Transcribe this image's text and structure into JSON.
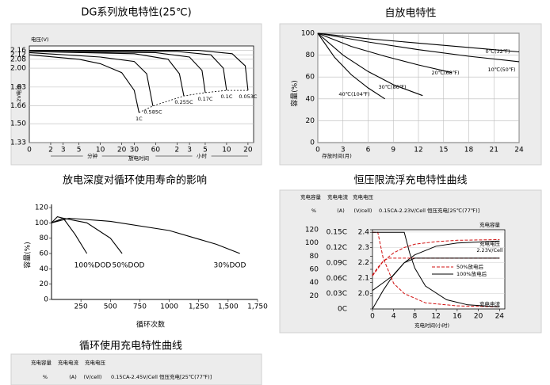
{
  "chart_data": [
    {
      "type": "line",
      "title": "DG系列放电特性(25℃)",
      "ylabel": "电压(V)",
      "side_label": "2V电池",
      "xlabel": "放电时间",
      "x_groups": [
        "分钟",
        "小时"
      ],
      "x_origin": "0",
      "xscale": "log",
      "xlim": [
        1,
        1440
      ],
      "ylim": [
        1.33,
        2.2
      ],
      "xticks": [
        2,
        3,
        5,
        10,
        20,
        30,
        60,
        {
          "value": 120,
          "label": "2"
        },
        {
          "value": 180,
          "label": "3"
        },
        {
          "value": 300,
          "label": "5"
        },
        {
          "value": 600,
          "label": "10"
        },
        {
          "value": 1200,
          "label": "20"
        }
      ],
      "yticks": [
        2.16,
        2.12,
        2.08,
        {
          "value": 2,
          "label": "2.00"
        },
        1.83,
        1.66,
        {
          "value": 1.5,
          "label": "1.50"
        },
        1.33
      ],
      "grid": true,
      "end_line": "dashed",
      "series": [
        {
          "name": "1C",
          "color": "#000000",
          "x": [
            1,
            5,
            10,
            20,
            30,
            35
          ],
          "values": [
            2.12,
            2.08,
            2.04,
            1.96,
            1.8,
            1.6
          ]
        },
        {
          "name": "0.585C",
          "color": "#000000",
          "x": [
            1,
            10,
            30,
            45,
            55
          ],
          "values": [
            2.14,
            2.1,
            2.06,
            1.95,
            1.66
          ]
        },
        {
          "name": "0.255C",
          "color": "#000000",
          "x": [
            1,
            30,
            90,
            130,
            150
          ],
          "values": [
            2.15,
            2.13,
            2.08,
            1.95,
            1.75
          ]
        },
        {
          "name": "0.17C",
          "color": "#000000",
          "x": [
            1,
            60,
            180,
            270,
            300
          ],
          "values": [
            2.15,
            2.14,
            2.1,
            1.98,
            1.78
          ]
        },
        {
          "name": "0.1C",
          "color": "#000000",
          "x": [
            1,
            120,
            360,
            540,
            600
          ],
          "values": [
            2.16,
            2.15,
            2.12,
            2.0,
            1.8
          ]
        },
        {
          "name": "0.053C",
          "color": "#000000",
          "x": [
            1,
            240,
            720,
            1100,
            1200
          ],
          "values": [
            2.16,
            2.16,
            2.13,
            2.02,
            1.8
          ]
        }
      ]
    },
    {
      "type": "line",
      "title": "自放电特性",
      "ylabel": "容量(%)",
      "xlabel": "存放时间(月)",
      "xlim": [
        0,
        24
      ],
      "ylim": [
        0,
        100
      ],
      "xticks": [
        0,
        3,
        6,
        9,
        12,
        15,
        18,
        21,
        24
      ],
      "yticks": [
        0,
        20,
        40,
        60,
        80,
        100
      ],
      "grid": true,
      "series": [
        {
          "name": "0℃(32℉)",
          "color": "#000000",
          "x": [
            0,
            6,
            12,
            18,
            24
          ],
          "values": [
            100,
            95,
            91,
            87,
            83
          ]
        },
        {
          "name": "10℃(50℉)",
          "color": "#000000",
          "x": [
            0,
            6,
            12,
            18,
            24
          ],
          "values": [
            100,
            92,
            85,
            79,
            74
          ]
        },
        {
          "name": "20℃(68℉)",
          "color": "#000000",
          "x": [
            0,
            4,
            8,
            12,
            16
          ],
          "values": [
            100,
            88,
            79,
            71,
            64
          ]
        },
        {
          "name": "30℃(86℉)",
          "color": "#000000",
          "x": [
            0,
            3,
            6,
            9,
            12.5
          ],
          "values": [
            100,
            80,
            65,
            53,
            43
          ]
        },
        {
          "name": "40℃(104℉)",
          "color": "#000000",
          "x": [
            0,
            2,
            4,
            6,
            8
          ],
          "values": [
            100,
            78,
            62,
            50,
            40
          ]
        }
      ]
    },
    {
      "type": "line",
      "title": "放电深度对循环使用寿命的影响",
      "ylabel": "容量(%)",
      "xlabel": "循环次数",
      "xlim": [
        0,
        1750
      ],
      "ylim": [
        0,
        120
      ],
      "xticks": [
        250,
        500,
        750,
        1000,
        {
          "value": 1250,
          "label": "1,250"
        },
        {
          "value": 1500,
          "label": "1,500"
        },
        {
          "value": 1750,
          "label": "1,750"
        }
      ],
      "yticks": [
        0,
        20,
        40,
        60,
        80,
        100,
        120
      ],
      "grid": false,
      "series": [
        {
          "name": "100%DOD",
          "color": "#000000",
          "x": [
            0,
            50,
            100,
            200,
            300
          ],
          "values": [
            100,
            108,
            106,
            85,
            60
          ]
        },
        {
          "name": "50%DOD",
          "color": "#000000",
          "x": [
            0,
            100,
            300,
            500,
            600
          ],
          "values": [
            100,
            106,
            100,
            80,
            60
          ]
        },
        {
          "name": "30%DOD",
          "color": "#000000",
          "x": [
            0,
            150,
            500,
            1000,
            1400,
            1600
          ],
          "values": [
            100,
            106,
            102,
            90,
            72,
            60
          ]
        }
      ]
    },
    {
      "type": "line",
      "title": "恒压限流浮充电特性曲线",
      "axis_titles": [
        "充电容量",
        "充电电流",
        "充电电压"
      ],
      "axis_units": [
        "%",
        "(A)",
        "(V/cell)"
      ],
      "note": "0.15CA-2.23V/Cell 恒压充电[25℃(77℉)]",
      "xlabel": "充电时间(小时)",
      "voltage_label": "2.23V/Cell",
      "xlim": [
        0,
        25
      ],
      "ylim": [
        0,
        120
      ],
      "y2lim": [
        0,
        0.155
      ],
      "y3lim": [
        1.9,
        2.415
      ],
      "xticks": [
        0,
        4,
        8,
        12,
        16,
        20,
        24
      ],
      "yticks": [
        20,
        40,
        60,
        80,
        100,
        120
      ],
      "y2ticks": [
        {
          "value": 0,
          "label": "0C"
        },
        {
          "value": 0.03,
          "label": "0.03C"
        },
        {
          "value": 0.06,
          "label": "0.06C"
        },
        {
          "value": 0.09,
          "label": "0.09C"
        },
        {
          "value": 0.12,
          "label": "0.12C"
        },
        {
          "value": 0.15,
          "label": "0.15C"
        }
      ],
      "y3ticks": [
        {
          "value": 2,
          "label": "2.0"
        },
        2.1,
        2.2,
        2.3,
        2.4
      ],
      "grid": true,
      "legend": [
        {
          "name": "50%放电后",
          "color": "#d01010",
          "dashed": true
        },
        {
          "name": "100%放电后",
          "color": "#000000",
          "dashed": false
        }
      ],
      "curves": [
        {
          "name": "充电容量",
          "axis": "y",
          "series": [
            {
              "x": [
                0,
                2,
                4,
                6,
                8,
                12,
                16,
                24
              ],
              "values": [
                50,
                72,
                85,
                93,
                98,
                102,
                104,
                105
              ]
            },
            {
              "x": [
                0,
                2,
                4,
                6,
                8,
                12,
                16,
                24
              ],
              "values": [
                0,
                28,
                52,
                70,
                82,
                95,
                100,
                103
              ]
            }
          ]
        },
        {
          "name": "充电电压",
          "axis": "y3",
          "series": [
            {
              "x": [
                0,
                1,
                2,
                3,
                4,
                8,
                24
              ],
              "values": [
                2.12,
                2.17,
                2.21,
                2.23,
                2.23,
                2.23,
                2.23
              ]
            },
            {
              "x": [
                0,
                2,
                4,
                6,
                8,
                24
              ],
              "values": [
                2.02,
                2.07,
                2.12,
                2.2,
                2.23,
                2.23
              ]
            }
          ]
        },
        {
          "name": "充电电流",
          "axis": "y2",
          "series": [
            {
              "x": [
                0,
                1,
                2,
                4,
                6,
                10,
                16,
                24
              ],
              "values": [
                0.15,
                0.15,
                0.1,
                0.05,
                0.03,
                0.012,
                0.006,
                0.004
              ]
            },
            {
              "x": [
                0,
                6,
                7,
                8,
                10,
                14,
                18,
                24
              ],
              "values": [
                0.15,
                0.15,
                0.11,
                0.08,
                0.045,
                0.018,
                0.008,
                0.004
              ]
            }
          ]
        }
      ]
    },
    {
      "type": "line",
      "title": "循环使用充电特性曲线",
      "axis_titles": [
        "充电容量",
        "充电电流",
        "充电电压"
      ],
      "axis_units": [
        "%",
        "(A)",
        "(V/cell)"
      ],
      "note": "0.15CA-2.45V/Cell 恒压充电[25℃(77℉)]"
    }
  ]
}
